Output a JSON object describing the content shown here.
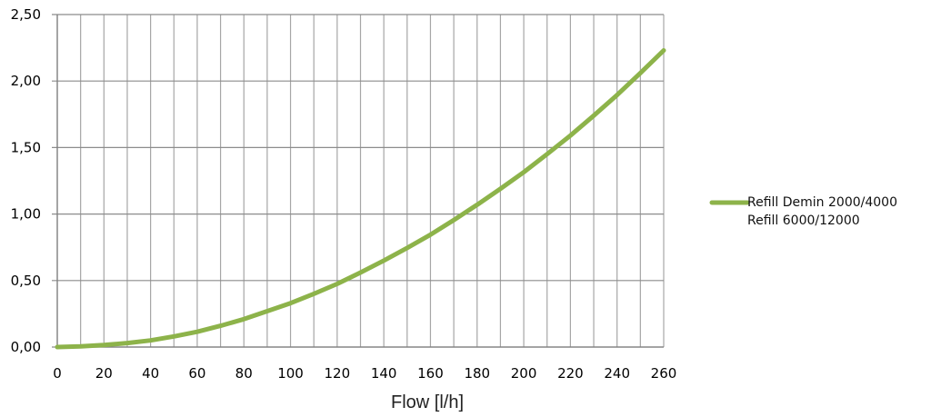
{
  "chart_data": {
    "type": "line",
    "xlabel": "Flow [l/h]",
    "ylabel": "",
    "xlim": [
      0,
      260
    ],
    "ylim": [
      0,
      2.5
    ],
    "x_ticks": [
      "0",
      "20",
      "40",
      "60",
      "80",
      "100",
      "120",
      "140",
      "160",
      "180",
      "200",
      "220",
      "240",
      "260"
    ],
    "y_ticks": [
      "0,00",
      "0,50",
      "1,00",
      "1,50",
      "2,00",
      "2,50"
    ],
    "grid": true,
    "legend_position": "right",
    "series": [
      {
        "name": "Refill Demin 2000/4000",
        "color": "#8db34a",
        "x": [
          0,
          10,
          20,
          30,
          40,
          50,
          60,
          70,
          80,
          90,
          100,
          110,
          120,
          130,
          140,
          150,
          160,
          170,
          180,
          190,
          200,
          210,
          220,
          230,
          240,
          250,
          260
        ],
        "y": [
          0.0,
          0.005,
          0.015,
          0.03,
          0.05,
          0.08,
          0.115,
          0.16,
          0.21,
          0.27,
          0.33,
          0.4,
          0.475,
          0.56,
          0.65,
          0.745,
          0.845,
          0.955,
          1.07,
          1.19,
          1.315,
          1.45,
          1.59,
          1.74,
          1.895,
          2.06,
          2.23
        ]
      },
      {
        "name": "Refill 6000/12000",
        "color": "#8db34a",
        "x": [],
        "y": []
      }
    ]
  }
}
